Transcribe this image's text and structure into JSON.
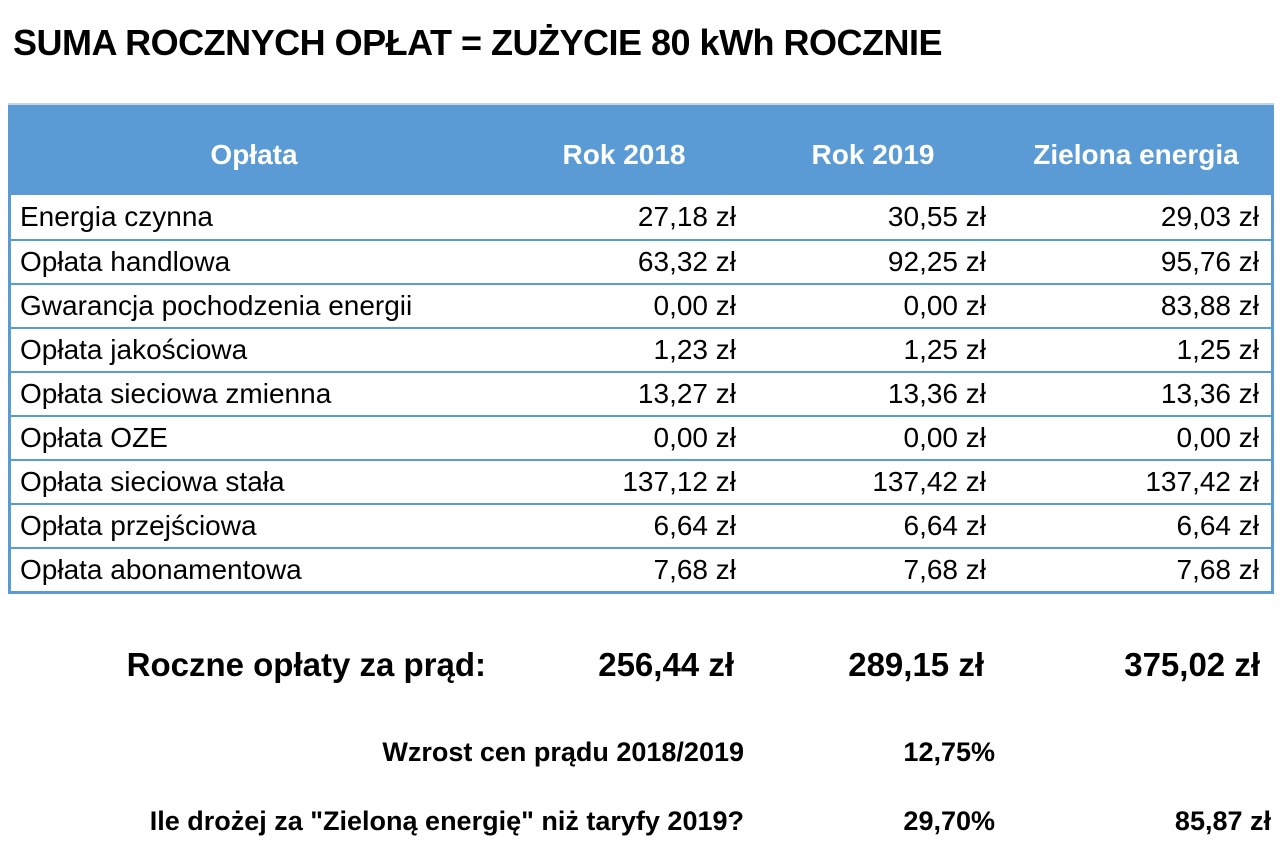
{
  "title": "SUMA ROCZNYCH OPŁAT = ZUŻYCIE 80 kWh ROCZNIE",
  "colors": {
    "header_bg": "#5b9bd5",
    "header_text": "#ffffff",
    "table_border": "#5b9bd5",
    "body_text": "#000000",
    "background": "#ffffff"
  },
  "chart_data": {
    "type": "table",
    "title": "SUMA ROCZNYCH OPŁAT = ZUŻYCIE 80 kWh ROCZNIE",
    "columns": [
      "Opłata",
      "Rok 2018",
      "Rok 2019",
      "Zielona energia"
    ],
    "rows": [
      {
        "label": "Energia czynna",
        "values": [
          "27,18 zł",
          "30,55 zł",
          "29,03 zł"
        ],
        "numeric": [
          27.18,
          30.55,
          29.03
        ]
      },
      {
        "label": "Opłata handlowa",
        "values": [
          "63,32 zł",
          "92,25 zł",
          "95,76 zł"
        ],
        "numeric": [
          63.32,
          92.25,
          95.76
        ]
      },
      {
        "label": "Gwarancja pochodzenia energii",
        "values": [
          "0,00 zł",
          "0,00 zł",
          "83,88 zł"
        ],
        "numeric": [
          0.0,
          0.0,
          83.88
        ]
      },
      {
        "label": "Opłata jakościowa",
        "values": [
          "1,23 zł",
          "1,25 zł",
          "1,25 zł"
        ],
        "numeric": [
          1.23,
          1.25,
          1.25
        ]
      },
      {
        "label": "Opłata sieciowa zmienna",
        "values": [
          "13,27 zł",
          "13,36 zł",
          "13,36 zł"
        ],
        "numeric": [
          13.27,
          13.36,
          13.36
        ]
      },
      {
        "label": "Opłata OZE",
        "values": [
          "0,00 zł",
          "0,00 zł",
          "0,00 zł"
        ],
        "numeric": [
          0.0,
          0.0,
          0.0
        ]
      },
      {
        "label": "Opłata sieciowa stała",
        "values": [
          "137,12 zł",
          "137,42 zł",
          "137,42 zł"
        ],
        "numeric": [
          137.12,
          137.42,
          137.42
        ]
      },
      {
        "label": "Opłata przejściowa",
        "values": [
          "6,64 zł",
          "6,64 zł",
          "6,64 zł"
        ],
        "numeric": [
          6.64,
          6.64,
          6.64
        ]
      },
      {
        "label": "Opłata abonamentowa",
        "values": [
          "7,68 zł",
          "7,68 zł",
          "7,68 zł"
        ],
        "numeric": [
          7.68,
          7.68,
          7.68
        ]
      }
    ],
    "summary": {
      "totals": {
        "label": "Roczne opłaty za prąd:",
        "values": [
          "256,44 zł",
          "289,15 zł",
          "375,02 zł"
        ],
        "numeric": [
          256.44,
          289.15,
          375.02
        ]
      },
      "price_increase": {
        "label": "Wzrost cen prądu 2018/2019",
        "value_percent": "12,75%",
        "numeric_percent": 12.75
      },
      "green_premium": {
        "label": "Ile drożej za \"Zieloną energię\" niż taryfy 2019?",
        "value_percent": "29,70%",
        "value_amount": "85,87 zł",
        "numeric_percent": 29.7,
        "numeric_amount": 85.87
      }
    }
  }
}
